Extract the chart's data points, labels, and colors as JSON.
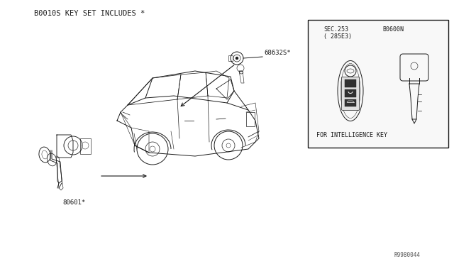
{
  "bg_color": "#ffffff",
  "line_color": "#1a1a1a",
  "title_text": "B0010S KEY SET INCLUDES *",
  "label_68632": "68632S*",
  "label_80601": "80601*",
  "label_80600N": "B0600N",
  "label_sec253": "SEC.253",
  "label_285e3": "( 285E3)",
  "label_intel_key": "FOR INTELLIGENCE KEY",
  "watermark": "R9980044",
  "font_size_title": 7.5,
  "font_size_label": 6.5,
  "font_size_small": 6.0,
  "font_size_tiny": 5.5
}
